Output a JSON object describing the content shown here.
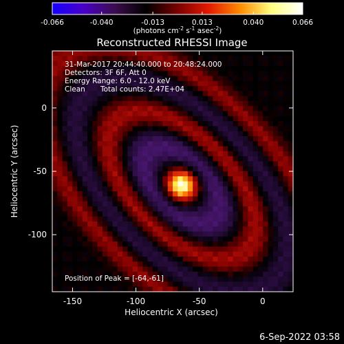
{
  "colorbar": {
    "tick_labels": [
      "-0.066",
      "-0.040",
      "-0.013",
      "0.013",
      "0.040",
      "0.066"
    ],
    "tick_values": [
      -0.066,
      -0.04,
      -0.013,
      0.013,
      0.04,
      0.066
    ],
    "range": [
      -0.066,
      0.066
    ],
    "unit_prefix": "(photons cm",
    "unit_sup1": "-2",
    "unit_mid": " s",
    "unit_sup2": "-1",
    "unit_mid2": " asec",
    "unit_sup3": "-2",
    "unit_suffix": ")",
    "colors": [
      "#1400ff",
      "#4a00c8",
      "#3b0d4d",
      "#000000",
      "#7a0000",
      "#e31a00",
      "#ff8a00",
      "#ffff80",
      "#ffffff"
    ]
  },
  "title": "Reconstructed RHESSI Image",
  "info": {
    "line1": "31-Mar-2017 20:44:40.000 to 20:48:24.000",
    "line2": "Detectors: 3F 6F, Att 0",
    "line3": "Energy Range: 6.0 - 12.0 keV",
    "line4_a": "Clean",
    "line4_b": "Total counts: 2.47E+04",
    "peak": "Position of Peak = [-64,-61]"
  },
  "chart_data": {
    "type": "heatmap",
    "title": "Reconstructed RHESSI Image",
    "xlabel": "Heliocentric X (arcsec)",
    "ylabel": "Heliocentric Y (arcsec)",
    "xlim": [
      -166,
      24
    ],
    "ylim": [
      -145,
      45
    ],
    "x_ticks": [
      -150,
      -100,
      -50,
      0
    ],
    "x_tick_labels": [
      "-150",
      "-100",
      "-50",
      "0"
    ],
    "y_ticks": [
      0,
      -50,
      -100
    ],
    "y_tick_labels": [
      "0",
      "-50",
      "-100"
    ],
    "peak_position": [
      -64,
      -61
    ],
    "peak_value": 0.066,
    "value_range": [
      -0.066,
      0.066
    ]
  },
  "footer": {
    "date": "6-Sep-2022 03:58"
  }
}
